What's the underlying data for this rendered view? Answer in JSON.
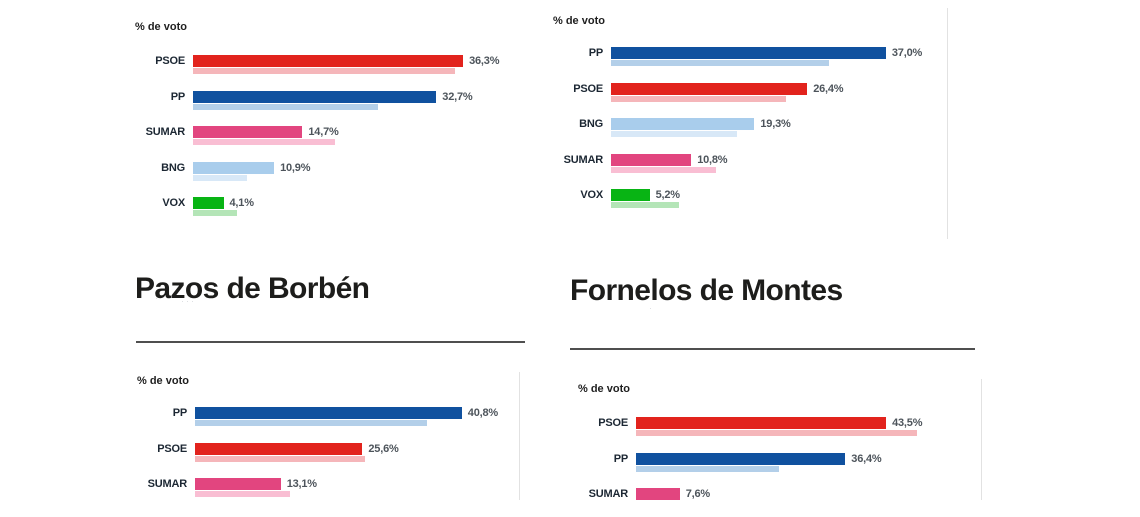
{
  "headings": [
    {
      "text": "Pazos de Borbén"
    },
    {
      "text": "Fornelos de Montes"
    }
  ],
  "artifacts": {
    "a": "·",
    "b": "···",
    "c": "·"
  },
  "party_colors": {
    "PSOE": {
      "main": "#e2231d",
      "light": "#f5b6ba"
    },
    "PP": {
      "main": "#10519f",
      "light": "#b3cfe9"
    },
    "SUMAR": {
      "main": "#e2457f",
      "light": "#f9bed3"
    },
    "BNG": {
      "main": "#a9cdec",
      "light": "#d8e8f7"
    },
    "VOX": {
      "main": "#08b414",
      "light": "#b4e5b7"
    }
  },
  "chart_data": [
    {
      "type": "bar",
      "position": "top-left",
      "axis_label": "% de voto",
      "legend_position": "none",
      "categories": [
        "PSOE",
        "PP",
        "SUMAR",
        "BNG",
        "VOX"
      ],
      "series": [
        {
          "name": "current",
          "values": [
            36.3,
            32.7,
            14.7,
            10.9,
            4.1
          ],
          "labels": [
            "36,3%",
            "32,7%",
            "14,7%",
            "10,9%",
            "4,1%"
          ]
        },
        {
          "name": "previous",
          "values": [
            35.2,
            24.9,
            19.1,
            7.3,
            5.9
          ]
        }
      ]
    },
    {
      "type": "bar",
      "position": "top-right",
      "axis_label": "% de voto",
      "legend_position": "none",
      "categories": [
        "PP",
        "PSOE",
        "BNG",
        "SUMAR",
        "VOX"
      ],
      "series": [
        {
          "name": "current",
          "values": [
            37.0,
            26.4,
            19.3,
            10.8,
            5.2
          ],
          "labels": [
            "37,0%",
            "26,4%",
            "19,3%",
            "10,8%",
            "5,2%"
          ]
        },
        {
          "name": "previous",
          "values": [
            29.3,
            23.6,
            17.0,
            14.1,
            9.2
          ]
        }
      ]
    },
    {
      "type": "bar",
      "position": "bottom-left",
      "municipality": "Pazos de Borbén",
      "axis_label": "% de voto",
      "legend_position": "none",
      "categories": [
        "PP",
        "PSOE",
        "SUMAR"
      ],
      "series": [
        {
          "name": "current",
          "values": [
            40.8,
            25.6,
            13.1
          ],
          "labels": [
            "40,8%",
            "25,6%",
            "13,1%"
          ]
        },
        {
          "name": "previous",
          "values": [
            35.5,
            26.0,
            14.5
          ]
        }
      ]
    },
    {
      "type": "bar",
      "position": "bottom-right",
      "municipality": "Fornelos de Montes",
      "axis_label": "% de voto",
      "legend_position": "none",
      "categories": [
        "PSOE",
        "PP",
        "SUMAR"
      ],
      "series": [
        {
          "name": "current",
          "values": [
            43.5,
            36.4,
            7.6
          ],
          "labels": [
            "43,5%",
            "36,4%",
            "7,6%"
          ]
        },
        {
          "name": "previous",
          "values": [
            48.9,
            24.9,
            null
          ]
        }
      ]
    }
  ]
}
